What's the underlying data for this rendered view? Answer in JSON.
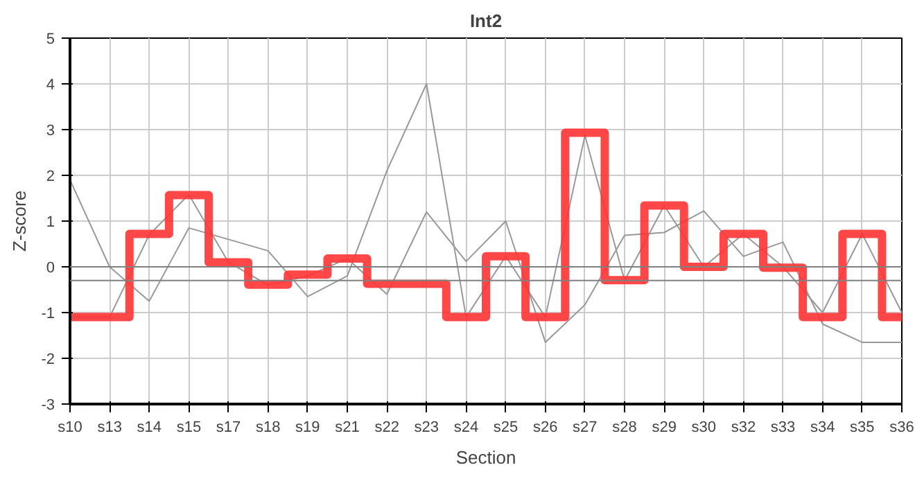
{
  "chart_data": {
    "type": "line",
    "title": "Int2",
    "xlabel": "Section",
    "ylabel": "Z-score",
    "categories": [
      "s10",
      "s13",
      "s14",
      "s15",
      "s17",
      "s18",
      "s19",
      "s21",
      "s22",
      "s23",
      "s24",
      "s25",
      "s26",
      "s27",
      "s28",
      "s29",
      "s30",
      "s32",
      "s33",
      "s34",
      "s35",
      "s36"
    ],
    "series": [
      {
        "color": "#999999",
        "values": [
          1.9,
          0,
          -0.75,
          0.85,
          0.6,
          0.35,
          -0.65,
          -0.2,
          2.1,
          4.0,
          -1.1,
          0.23,
          -1.1,
          2.87,
          -0.3,
          1.34,
          0,
          0.72,
          0,
          -1.0,
          0.72,
          -1.0
        ]
      },
      {
        "color": "#999999",
        "values": [
          -1.1,
          -1.1,
          0.7,
          1.58,
          0.1,
          -0.4,
          -0.2,
          0.18,
          -0.6,
          1.2,
          0.12,
          1.0,
          -1.65,
          -0.83,
          0.69,
          0.75,
          1.22,
          0.23,
          0.54,
          -1.25,
          -1.65,
          -1.65
        ]
      },
      {
        "type": "step",
        "color": "#ff3333",
        "values": [
          -1.1,
          -1.1,
          0.72,
          1.57,
          0.1,
          -0.39,
          -0.17,
          0.18,
          -0.37,
          -0.37,
          -1.1,
          0.23,
          -1.1,
          2.93,
          -0.29,
          1.34,
          0,
          0.72,
          -0.02,
          -1.1,
          0.72,
          -1.1
        ]
      }
    ],
    "ylim": [
      -3,
      5
    ],
    "yticks": [
      -3,
      -2,
      -1,
      0,
      1,
      2,
      3,
      4,
      5
    ],
    "grid": true,
    "ref_lines": [
      {
        "axis": "y",
        "value": 0,
        "color": "#808080"
      },
      {
        "axis": "y",
        "value": -0.3,
        "color": "#808080"
      }
    ]
  }
}
